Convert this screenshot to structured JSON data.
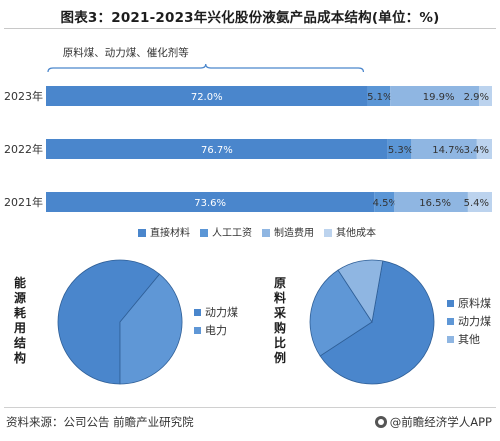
{
  "title": "图表3：2021-2023年兴化股份液氨产品成本结构(单位：%)",
  "colors": {
    "direct_material": "#4a86cc",
    "labor": "#5b96d6",
    "manufacturing": "#8fb6e2",
    "other": "#bcd3ee",
    "pie_dark": "#4a86cc",
    "pie_mid": "#5f97d6",
    "pie_light": "#8fb6e2"
  },
  "chart_data": [
    {
      "type": "bar",
      "orientation": "horizontal",
      "stacked": true,
      "categories": [
        "2023年",
        "2022年",
        "2021年"
      ],
      "series": [
        {
          "name": "直接材料",
          "values": [
            72.0,
            76.7,
            73.6
          ],
          "labels": [
            "72.0%",
            "76.7%",
            "73.6%"
          ]
        },
        {
          "name": "人工工资",
          "values": [
            5.1,
            5.3,
            4.5
          ],
          "labels": [
            "5.1%",
            "5.3%",
            "4.5%"
          ]
        },
        {
          "name": "制造费用",
          "values": [
            19.9,
            14.7,
            16.5
          ],
          "labels": [
            "19.9%",
            "14.7%",
            "16.5%"
          ]
        },
        {
          "name": "其他成本",
          "values": [
            2.9,
            3.4,
            5.4
          ],
          "labels": [
            "2.9%",
            "3.4%",
            "5.4%"
          ]
        }
      ],
      "annotation": "原料煤、动力煤、催化剂等",
      "legend": "bottom"
    },
    {
      "type": "pie",
      "side_title": "能源耗用结构",
      "slices": [
        {
          "name": "动力煤",
          "value": 61
        },
        {
          "name": "电力",
          "value": 39
        }
      ],
      "legend": "right"
    },
    {
      "type": "pie",
      "side_title": "原料采购比例",
      "slices": [
        {
          "name": "原料煤",
          "value": 63
        },
        {
          "name": "动力煤",
          "value": 25
        },
        {
          "name": "其他",
          "value": 12
        }
      ],
      "legend": "right"
    }
  ],
  "footer": {
    "source": "资料来源：公司公告 前瞻产业研究院",
    "brand": "@前瞻经济学人APP"
  }
}
